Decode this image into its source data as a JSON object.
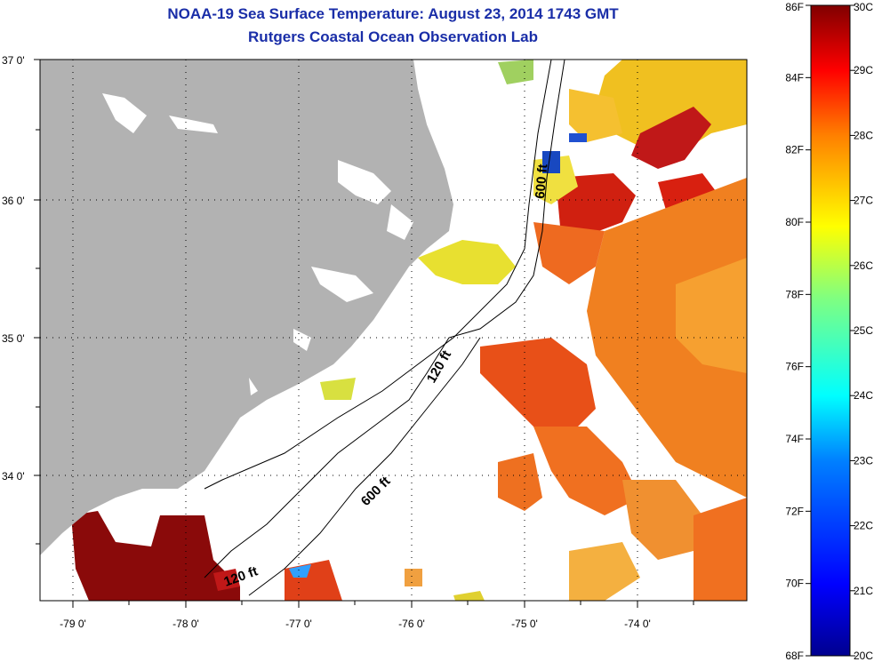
{
  "title_line1": "NOAA-19 Sea Surface Temperature:  August 23, 2014 1743 GMT",
  "title_line2": "Rutgers Coastal Ocean Observation Lab",
  "map": {
    "lat_ticks": [
      "37 0'",
      "36 0'",
      "35 0'",
      "34 0'"
    ],
    "lon_ticks": [
      "-79 0'",
      "-78 0'",
      "-77 0'",
      "-76 0'",
      "-75 0'",
      "-74 0'"
    ],
    "contour_labels": [
      "600 ft",
      "120 ft",
      "600 ft",
      "120 ft"
    ]
  },
  "colorbar": {
    "fahrenheit_labels": [
      "86F",
      "84F",
      "82F",
      "80F",
      "78F",
      "76F",
      "74F",
      "72F",
      "70F",
      "68F"
    ],
    "celsius_labels": [
      "30C",
      "29C",
      "28C",
      "27C",
      "26C",
      "25C",
      "24C",
      "23C",
      "22C",
      "21C",
      "20C"
    ],
    "colors": [
      "#00008f",
      "#0000ff",
      "#0080ff",
      "#00ffff",
      "#80ff80",
      "#ffff00",
      "#ff8000",
      "#ff0000",
      "#800000"
    ]
  },
  "colors": {
    "land": "#b2b2b2",
    "title": "#1a2ea8"
  }
}
